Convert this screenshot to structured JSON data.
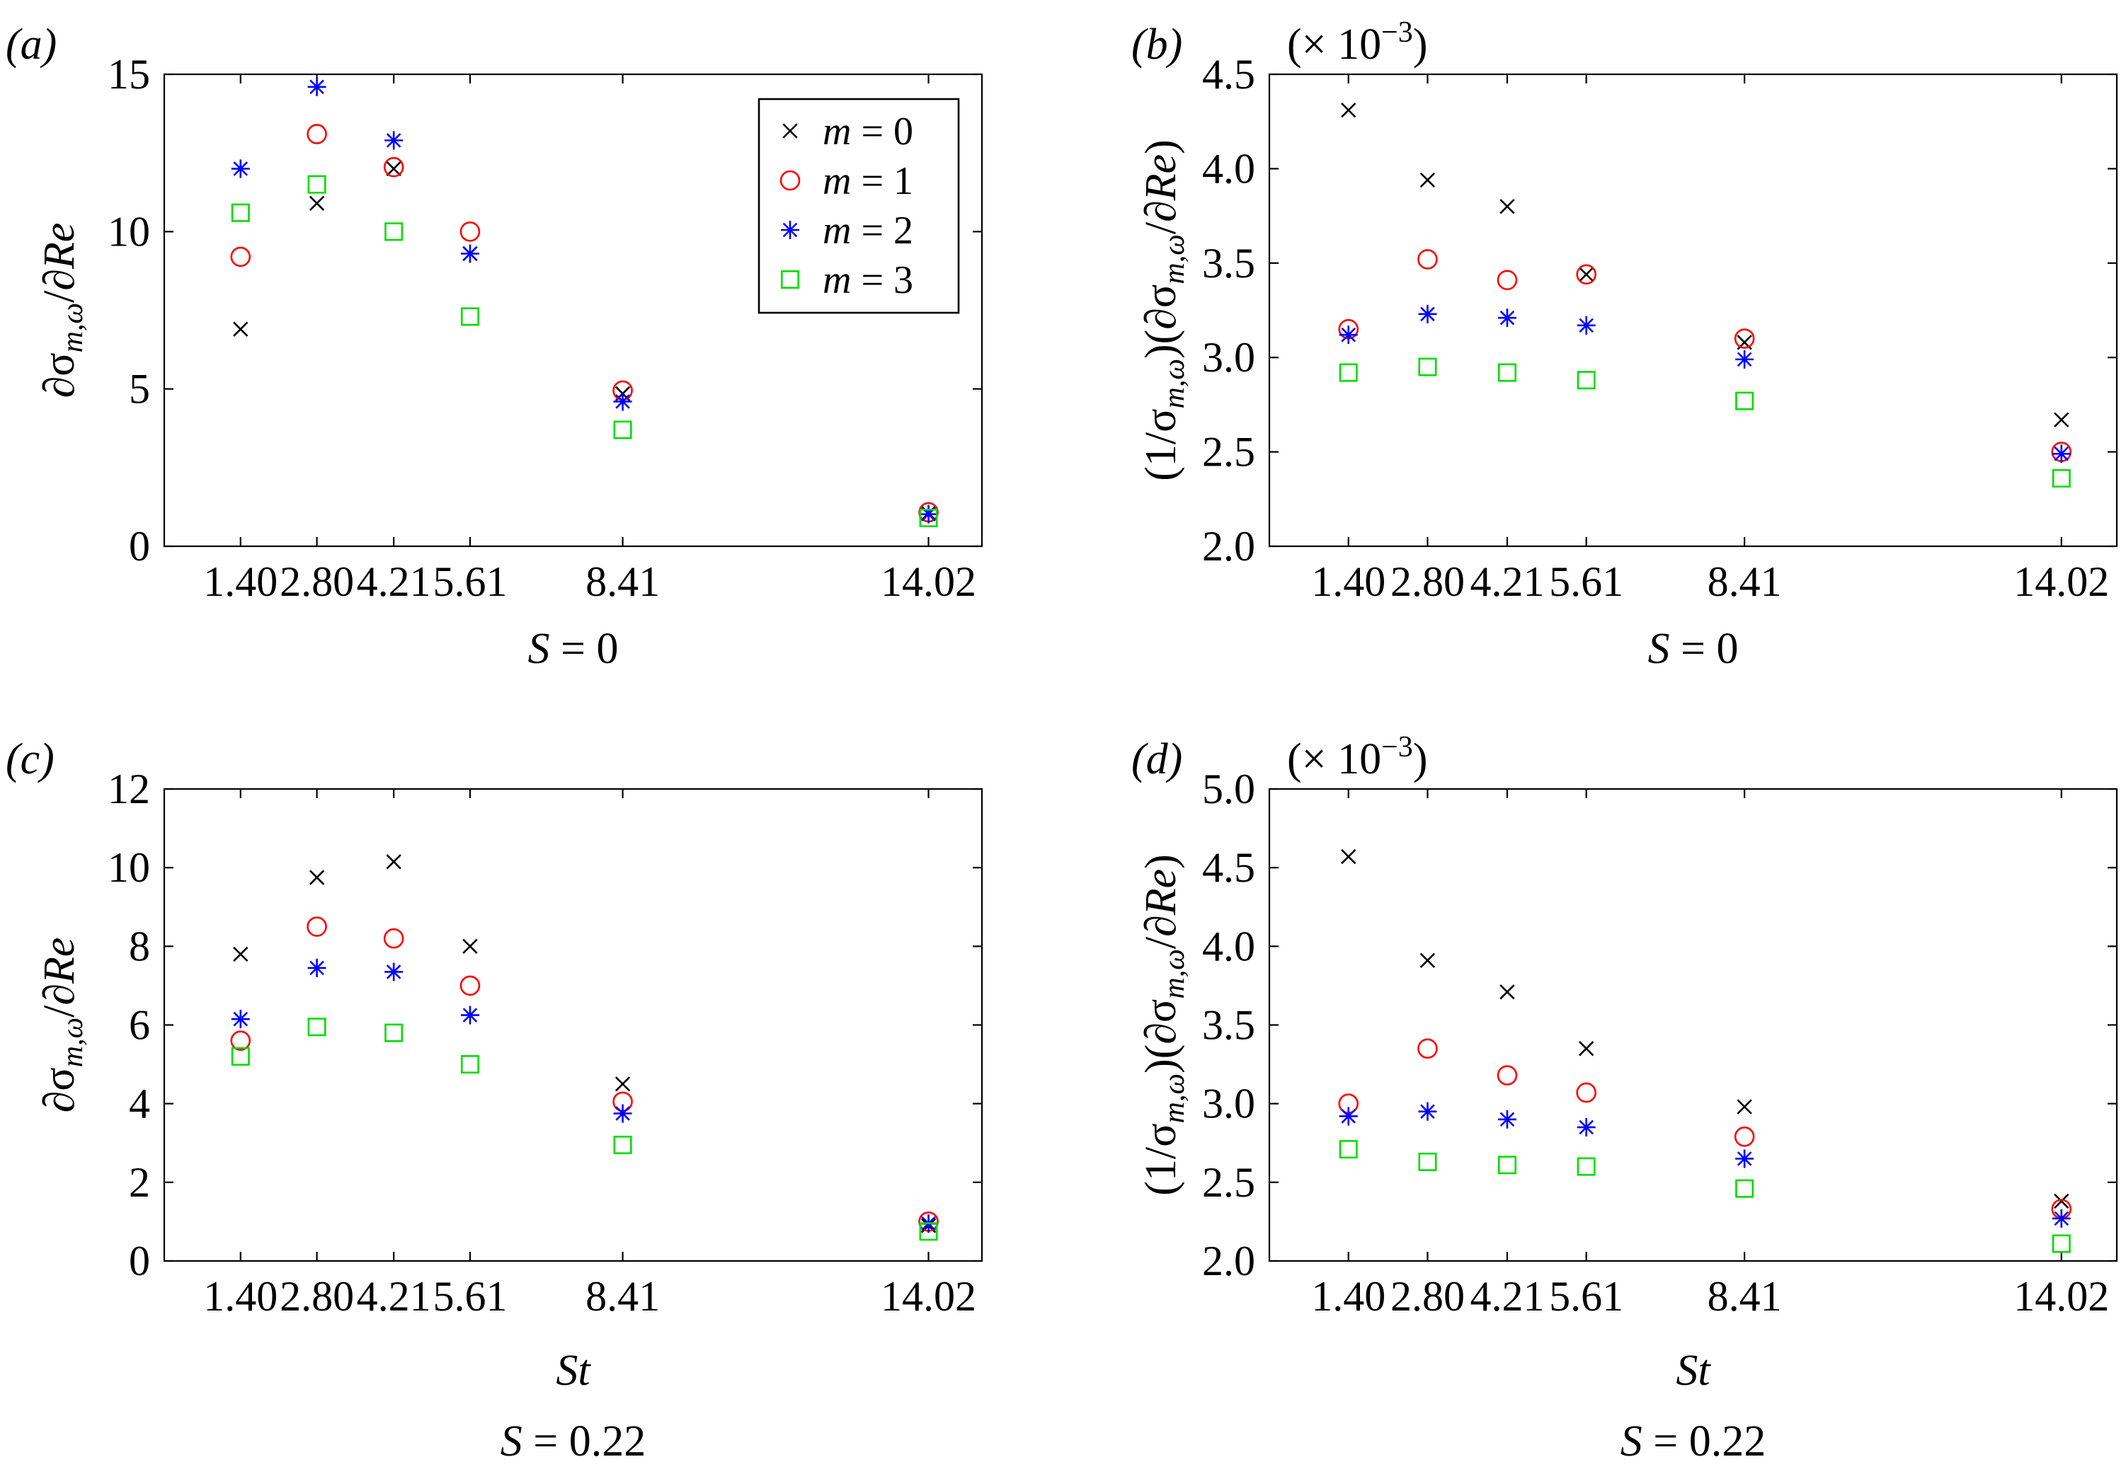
{
  "colors": {
    "m0": "#000000",
    "m1": "#ff0000",
    "m2": "#0000ff",
    "m3": "#00dd00"
  },
  "legend": {
    "entries": [
      {
        "series": "m0",
        "marker": "x",
        "var": "m",
        "eq": "=",
        "val": "0"
      },
      {
        "series": "m1",
        "marker": "circle",
        "var": "m",
        "eq": "=",
        "val": "1"
      },
      {
        "series": "m2",
        "marker": "star",
        "var": "m",
        "eq": "=",
        "val": "2"
      },
      {
        "series": "m3",
        "marker": "square",
        "var": "m",
        "eq": "=",
        "val": "3"
      }
    ]
  },
  "chart_data": [
    {
      "id": "a",
      "type": "scatter",
      "panel_label": "(a)",
      "x": [
        1.4,
        2.8,
        4.21,
        5.61,
        8.41,
        14.02
      ],
      "x_tick_labels": [
        "1.40",
        "2.80",
        "4.21",
        "5.61",
        "8.41",
        "14.02"
      ],
      "xlim": [
        0,
        15
      ],
      "ylim": [
        0,
        15
      ],
      "y_ticks": [
        0,
        5,
        10,
        15
      ],
      "y_tick_labels": [
        "0",
        "5",
        "10",
        "15"
      ],
      "ylabel": {
        "pre": "∂σ",
        "sub": "m,ω",
        "post": "/∂",
        "re": "Re"
      },
      "xlabel": "",
      "condition": {
        "var": "S",
        "eq": " = ",
        "val": "0"
      },
      "exponent": null,
      "legend": true,
      "series": [
        {
          "name": "m = 0",
          "key": "m0",
          "marker": "x",
          "values": [
            6.9,
            10.9,
            12.0,
            9.3,
            4.85,
            1.05
          ]
        },
        {
          "name": "m = 1",
          "key": "m1",
          "marker": "circle",
          "values": [
            9.2,
            13.1,
            12.05,
            10.0,
            4.95,
            1.08
          ]
        },
        {
          "name": "m = 2",
          "key": "m2",
          "marker": "star",
          "values": [
            12.0,
            14.6,
            12.9,
            9.3,
            4.6,
            1.02
          ]
        },
        {
          "name": "m = 3",
          "key": "m3",
          "marker": "square",
          "values": [
            10.6,
            11.5,
            10.0,
            7.3,
            3.7,
            0.9
          ]
        }
      ]
    },
    {
      "id": "b",
      "type": "scatter",
      "panel_label": "(b)",
      "x": [
        1.4,
        2.8,
        4.21,
        5.61,
        8.41,
        14.02
      ],
      "x_tick_labels": [
        "1.40",
        "2.80",
        "4.21",
        "5.61",
        "8.41",
        "14.02"
      ],
      "xlim": [
        0,
        15
      ],
      "ylim": [
        2.0,
        4.5
      ],
      "y_ticks": [
        2.0,
        2.5,
        3.0,
        3.5,
        4.0,
        4.5
      ],
      "y_tick_labels": [
        "2.0",
        "2.5",
        "3.0",
        "3.5",
        "4.0",
        "4.5"
      ],
      "ylabel": {
        "pre": "(1/σ",
        "sub": "m,ω",
        "post": ")(∂σ",
        "sub2": "m,ω",
        "post2": "/∂",
        "re": "Re",
        "end": ")"
      },
      "xlabel": "",
      "condition": {
        "var": "S",
        "eq": " = ",
        "val": "0"
      },
      "exponent": {
        "pre": "(× 10",
        "sup": "−3",
        "post": ")"
      },
      "legend": false,
      "series": [
        {
          "name": "m = 0",
          "key": "m0",
          "marker": "x",
          "values": [
            4.31,
            3.94,
            3.8,
            3.44,
            3.08,
            2.67
          ]
        },
        {
          "name": "m = 1",
          "key": "m1",
          "marker": "circle",
          "values": [
            3.15,
            3.52,
            3.41,
            3.44,
            3.1,
            2.5
          ]
        },
        {
          "name": "m = 2",
          "key": "m2",
          "marker": "star",
          "values": [
            3.12,
            3.23,
            3.21,
            3.17,
            2.99,
            2.49
          ]
        },
        {
          "name": "m = 3",
          "key": "m3",
          "marker": "square",
          "values": [
            2.92,
            2.95,
            2.92,
            2.88,
            2.77,
            2.36
          ]
        }
      ]
    },
    {
      "id": "c",
      "type": "scatter",
      "panel_label": "(c)",
      "x": [
        1.4,
        2.8,
        4.21,
        5.61,
        8.41,
        14.02
      ],
      "x_tick_labels": [
        "1.40",
        "2.80",
        "4.21",
        "5.61",
        "8.41",
        "14.02"
      ],
      "xlim": [
        0,
        15
      ],
      "ylim": [
        0,
        12
      ],
      "y_ticks": [
        0,
        2,
        4,
        6,
        8,
        10,
        12
      ],
      "y_tick_labels": [
        "0",
        "2",
        "4",
        "6",
        "8",
        "10",
        "12"
      ],
      "ylabel": {
        "pre": "∂σ",
        "sub": "m,ω",
        "post": "/∂",
        "re": "Re"
      },
      "xlabel": "St",
      "condition": {
        "var": "S",
        "eq": " = ",
        "val": "0.22"
      },
      "exponent": null,
      "legend": false,
      "series": [
        {
          "name": "m = 0",
          "key": "m0",
          "marker": "x",
          "values": [
            7.8,
            9.75,
            10.15,
            8.0,
            4.5,
            0.9
          ]
        },
        {
          "name": "m = 1",
          "key": "m1",
          "marker": "circle",
          "values": [
            5.6,
            8.5,
            8.2,
            7.0,
            4.05,
            1.0
          ]
        },
        {
          "name": "m = 2",
          "key": "m2",
          "marker": "star",
          "values": [
            6.15,
            7.45,
            7.35,
            6.25,
            3.75,
            0.95
          ]
        },
        {
          "name": "m = 3",
          "key": "m3",
          "marker": "square",
          "values": [
            5.2,
            5.95,
            5.8,
            5.0,
            2.95,
            0.75
          ]
        }
      ]
    },
    {
      "id": "d",
      "type": "scatter",
      "panel_label": "(d)",
      "x": [
        1.4,
        2.8,
        4.21,
        5.61,
        8.41,
        14.02
      ],
      "x_tick_labels": [
        "1.40",
        "2.80",
        "4.21",
        "5.61",
        "8.41",
        "14.02"
      ],
      "xlim": [
        0,
        15
      ],
      "ylim": [
        2.0,
        5.0
      ],
      "y_ticks": [
        2.0,
        2.5,
        3.0,
        3.5,
        4.0,
        4.5,
        5.0
      ],
      "y_tick_labels": [
        "2.0",
        "2.5",
        "3.0",
        "3.5",
        "4.0",
        "4.5",
        "5.0"
      ],
      "ylabel": {
        "pre": "(1/σ",
        "sub": "m,ω",
        "post": ")(∂σ",
        "sub2": "m,ω",
        "post2": "/∂",
        "re": "Re",
        "end": ")"
      },
      "xlabel": "St",
      "condition": {
        "var": "S",
        "eq": " = ",
        "val": "0.22"
      },
      "exponent": {
        "pre": "(× 10",
        "sup": "−3",
        "post": ")"
      },
      "legend": false,
      "series": [
        {
          "name": "m = 0",
          "key": "m0",
          "marker": "x",
          "values": [
            4.57,
            3.91,
            3.71,
            3.35,
            2.98,
            2.38
          ]
        },
        {
          "name": "m = 1",
          "key": "m1",
          "marker": "circle",
          "values": [
            3.0,
            3.35,
            3.18,
            3.07,
            2.79,
            2.33
          ]
        },
        {
          "name": "m = 2",
          "key": "m2",
          "marker": "star",
          "values": [
            2.92,
            2.95,
            2.9,
            2.85,
            2.65,
            2.27
          ]
        },
        {
          "name": "m = 3",
          "key": "m3",
          "marker": "square",
          "values": [
            2.71,
            2.63,
            2.61,
            2.6,
            2.46,
            2.11
          ]
        }
      ]
    }
  ]
}
